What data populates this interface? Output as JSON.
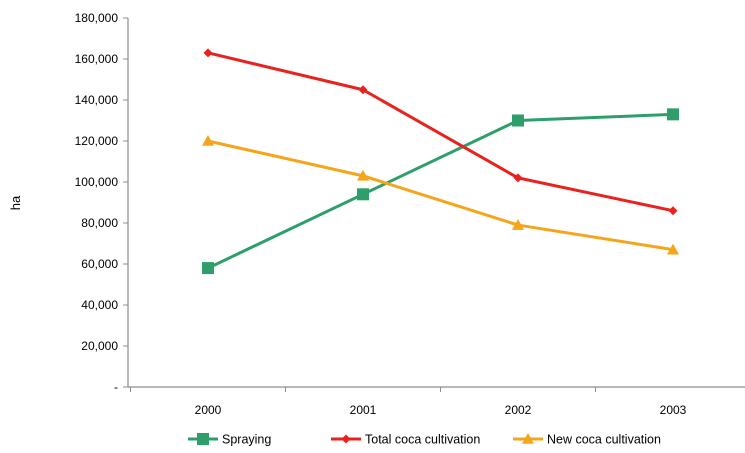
{
  "chart_data": {
    "type": "line",
    "title": "",
    "xlabel": "",
    "ylabel": "ha",
    "x": [
      "2000",
      "2001",
      "2002",
      "2003"
    ],
    "ylim": [
      0,
      180000
    ],
    "y_ticks": [
      0,
      20000,
      40000,
      60000,
      80000,
      100000,
      120000,
      140000,
      160000,
      180000
    ],
    "y_tick_labels": [
      "-",
      "20,000",
      "40,000",
      "60,000",
      "80,000",
      "100,000",
      "120,000",
      "140,000",
      "160,000",
      "180,000"
    ],
    "grid": false,
    "legend_position": "bottom",
    "series": [
      {
        "name": "Spraying",
        "values": [
          58000,
          94000,
          130000,
          133000
        ],
        "color": "#2e9e6b",
        "marker": "square"
      },
      {
        "name": "Total coca cultivation",
        "values": [
          163000,
          145000,
          102000,
          86000
        ],
        "color": "#e8231f",
        "marker": "diamond"
      },
      {
        "name": "New coca cultivation",
        "values": [
          120000,
          103000,
          79000,
          67000
        ],
        "color": "#f5a51c",
        "marker": "triangle"
      }
    ]
  }
}
